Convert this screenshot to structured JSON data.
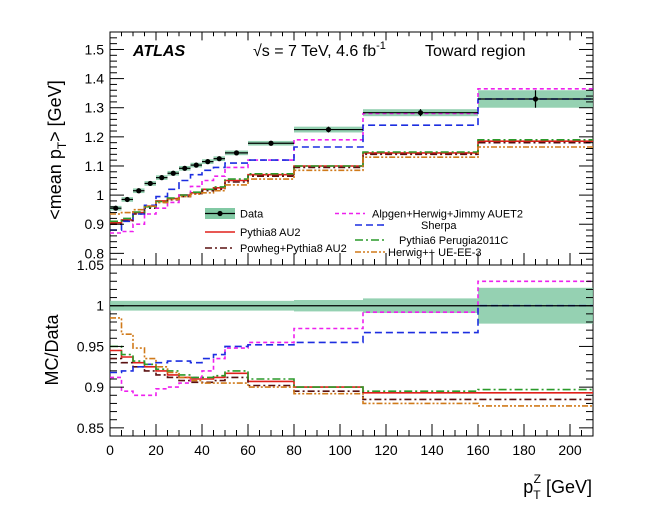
{
  "chart_data": {
    "type": "line",
    "title": {
      "experiment": "ATLAS",
      "energy": "√s = 7 TeV, 4.6 fb",
      "energy_sup": "-1",
      "region": "Toward region"
    },
    "xlabel": {
      "main": "p",
      "sub": "T",
      "sup": "Z",
      "unit": " [GeV]"
    },
    "xlim": [
      0,
      210
    ],
    "xticks": [
      0,
      20,
      40,
      60,
      80,
      100,
      120,
      140,
      160,
      180,
      200
    ],
    "x_edges": [
      0,
      5,
      10,
      15,
      20,
      25,
      30,
      35,
      40,
      45,
      50,
      60,
      80,
      110,
      160,
      210
    ],
    "top_panel": {
      "ylabel": {
        "pre": "<mean p",
        "sub": "T",
        "post": "> [GeV]"
      },
      "ylim": [
        0.76,
        1.56
      ],
      "yticks": [
        0.8,
        0.9,
        1.0,
        1.1,
        1.2,
        1.3,
        1.4,
        1.5
      ],
      "ytick_labels": [
        "0.8",
        "0.9",
        "1",
        "1.1",
        "1.2",
        "1.3",
        "1.4",
        "1.5"
      ],
      "data": {
        "name": "Data",
        "x": [
          2.5,
          7.5,
          12.5,
          17.5,
          22.5,
          27.5,
          32.5,
          37.5,
          42.5,
          47.5,
          55,
          70,
          95,
          135,
          185
        ],
        "y": [
          0.955,
          0.985,
          1.015,
          1.04,
          1.06,
          1.075,
          1.092,
          1.103,
          1.115,
          1.125,
          1.145,
          1.178,
          1.225,
          1.283,
          1.33
        ],
        "yerr": [
          0.008,
          0.008,
          0.008,
          0.008,
          0.008,
          0.008,
          0.008,
          0.008,
          0.008,
          0.008,
          0.008,
          0.008,
          0.01,
          0.012,
          0.03
        ]
      },
      "series": [
        {
          "name": "Pythia8 AU2",
          "color": "#e0201b",
          "dash": "none",
          "values": [
            0.905,
            0.915,
            0.94,
            0.962,
            0.98,
            0.988,
            1.0,
            1.008,
            1.02,
            1.025,
            1.05,
            1.07,
            1.1,
            1.145,
            1.185
          ]
        },
        {
          "name": "Powheg+Pythia8 AU2",
          "color": "#5a1010",
          "dash": "7,3,2,3",
          "values": [
            0.9,
            0.912,
            0.935,
            0.955,
            0.975,
            0.984,
            0.995,
            1.005,
            1.015,
            1.02,
            1.045,
            1.065,
            1.095,
            1.14,
            1.18
          ]
        },
        {
          "name": "Alpgen+Herwig+Jimmy AUET2",
          "color": "#ee20ee",
          "dash": "4,3",
          "values": [
            0.87,
            0.875,
            0.9,
            0.935,
            0.955,
            0.975,
            1.0,
            1.03,
            1.05,
            1.065,
            1.095,
            1.12,
            1.19,
            1.28,
            1.365
          ]
        },
        {
          "name": "Sherpa",
          "color": "#1c2ee0",
          "dash": "7,4",
          "values": [
            0.88,
            0.91,
            0.935,
            0.965,
            0.995,
            1.02,
            1.05,
            1.07,
            1.085,
            1.095,
            1.11,
            1.12,
            1.165,
            1.24,
            1.33
          ]
        },
        {
          "name": "Pythia6 Perugia2011C",
          "color": "#2a9a2a",
          "dash": "8,3,2,3",
          "values": [
            0.91,
            0.92,
            0.942,
            0.96,
            0.978,
            0.99,
            1.0,
            1.01,
            1.02,
            1.028,
            1.055,
            1.073,
            1.1,
            1.148,
            1.19
          ]
        },
        {
          "name": "Herwig++ UE-EE-3",
          "color": "#d07a1a",
          "dash": "6,2,2,2,2,2",
          "values": [
            0.935,
            0.94,
            0.95,
            0.962,
            0.975,
            0.985,
            0.995,
            1.003,
            1.008,
            1.015,
            1.035,
            1.055,
            1.085,
            1.13,
            1.165
          ]
        }
      ]
    },
    "ratio_panel": {
      "ylabel": "MC/Data",
      "ylim": [
        0.84,
        1.05
      ],
      "yticks": [
        0.85,
        0.9,
        0.95,
        1.0,
        1.05
      ],
      "ytick_labels": [
        "0.85",
        "0.9",
        "0.95",
        "1",
        "1.05"
      ],
      "band_halfwidth": [
        0.006,
        0.006,
        0.006,
        0.006,
        0.006,
        0.006,
        0.006,
        0.006,
        0.006,
        0.006,
        0.006,
        0.006,
        0.007,
        0.009,
        0.022
      ],
      "series": [
        {
          "name": "Pythia8 AU2",
          "values": [
            0.945,
            0.937,
            0.93,
            0.925,
            0.92,
            0.915,
            0.912,
            0.91,
            0.91,
            0.912,
            0.917,
            0.907,
            0.9,
            0.893,
            0.893
          ]
        },
        {
          "name": "Powheg+Pythia8 AU2",
          "values": [
            0.935,
            0.93,
            0.925,
            0.92,
            0.915,
            0.912,
            0.908,
            0.906,
            0.906,
            0.908,
            0.912,
            0.902,
            0.895,
            0.885,
            0.885
          ]
        },
        {
          "name": "Alpgen+Herwig+Jimmy AUET2",
          "values": [
            0.912,
            0.895,
            0.89,
            0.89,
            0.898,
            0.9,
            0.905,
            0.912,
            0.92,
            0.935,
            0.948,
            0.955,
            0.972,
            0.992,
            1.03
          ]
        },
        {
          "name": "Sherpa",
          "values": [
            0.918,
            0.92,
            0.925,
            0.928,
            0.93,
            0.932,
            0.932,
            0.93,
            0.935,
            0.94,
            0.95,
            0.952,
            0.955,
            0.967,
            1.0
          ]
        },
        {
          "name": "Pythia6 Perugia2011C",
          "values": [
            0.95,
            0.94,
            0.932,
            0.928,
            0.922,
            0.92,
            0.915,
            0.912,
            0.912,
            0.914,
            0.92,
            0.91,
            0.9,
            0.895,
            0.897
          ]
        },
        {
          "name": "Herwig++ UE-EE-3",
          "values": [
            0.985,
            0.965,
            0.948,
            0.935,
            0.925,
            0.918,
            0.912,
            0.908,
            0.905,
            0.905,
            0.905,
            0.9,
            0.892,
            0.88,
            0.877
          ]
        }
      ]
    },
    "legend": {
      "data_label": "Data",
      "col1": [
        "Pythia8 AU2",
        "Powheg+Pythia8 AU2"
      ],
      "col2": [
        "Alpgen+Herwig+Jimmy AUET2",
        "Sherpa",
        "Pythia6 Perugia2011C",
        "Herwig++ UE-EE-3"
      ]
    }
  }
}
